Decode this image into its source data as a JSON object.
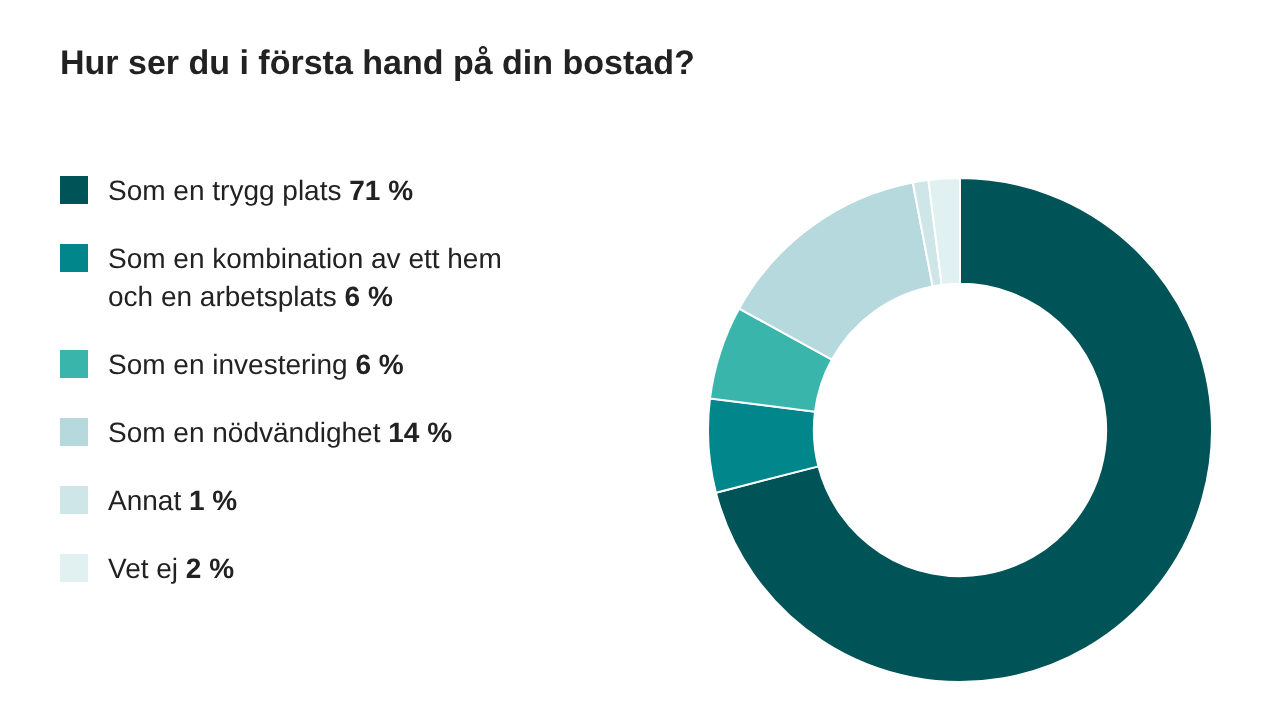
{
  "chart_data": {
    "type": "donut",
    "title": "Hur ser du i första hand på din bostad?",
    "categories": [
      "Som en trygg plats",
      "Som en kombination av ett hem och en arbetsplats",
      "Som en investering",
      "Som en nödvändighet",
      "Annat",
      "Vet ej"
    ],
    "values": [
      71,
      6,
      6,
      14,
      1,
      2
    ],
    "value_labels": [
      "71 %",
      "6 %",
      "6 %",
      "14 %",
      "1 %",
      "2 %"
    ],
    "colors": [
      "#005357",
      "#00868b",
      "#3ab5ac",
      "#b5d9dd",
      "#cfe6e9",
      "#e1f0f0"
    ],
    "legend": "left"
  }
}
